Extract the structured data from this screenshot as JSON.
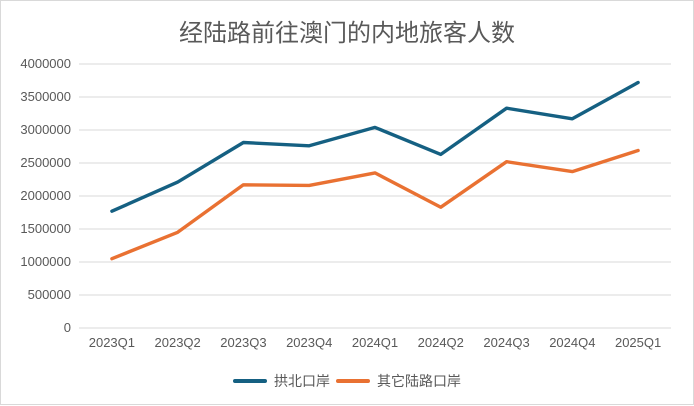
{
  "title": "经陆路前往澳门的内地旅客人数",
  "colors": {
    "series1": "#156082",
    "series2": "#E97132",
    "gridline": "#D9D9D9",
    "text": "#595959",
    "border": "#D9D9D9",
    "background": "#FFFFFF"
  },
  "chart_data": {
    "type": "line",
    "title": "经陆路前往澳门的内地旅客人数",
    "categories": [
      "2023Q1",
      "2023Q2",
      "2023Q3",
      "2023Q4",
      "2024Q1",
      "2024Q2",
      "2024Q3",
      "2024Q4",
      "2025Q1"
    ],
    "series": [
      {
        "name": "拱北口岸",
        "color": "#156082",
        "values": [
          1770000,
          2210000,
          2810000,
          2760000,
          3040000,
          2630000,
          3330000,
          3170000,
          3720000
        ]
      },
      {
        "name": "其它陆路口岸",
        "color": "#E97132",
        "values": [
          1050000,
          1450000,
          2170000,
          2160000,
          2350000,
          1830000,
          2520000,
          2370000,
          2690000
        ]
      }
    ],
    "xlabel": "",
    "ylabel": "",
    "ylim": [
      0,
      4000000
    ],
    "ytick_step": 500000,
    "yticks": [
      "0",
      "500000",
      "1000000",
      "1500000",
      "2000000",
      "2500000",
      "3000000",
      "3500000",
      "4000000"
    ],
    "grid": true,
    "legend_position": "bottom"
  }
}
